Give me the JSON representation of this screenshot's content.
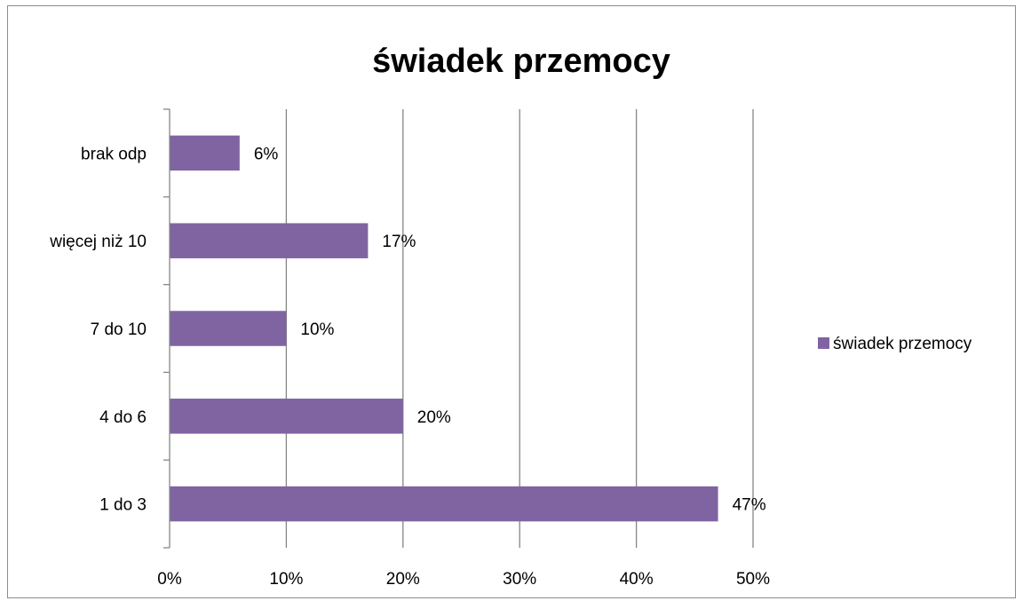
{
  "chart_data": {
    "type": "bar",
    "orientation": "horizontal",
    "title": "świadek przemocy",
    "categories": [
      "1 do 3",
      "4 do 6",
      "7 do 10",
      "więcej niż 10",
      "brak odp"
    ],
    "series": [
      {
        "name": "świadek przemocy",
        "values": [
          47,
          20,
          10,
          17,
          6
        ],
        "data_labels": [
          "47%",
          "20%",
          "10%",
          "17%",
          "6%"
        ],
        "color": "#8064A2"
      }
    ],
    "xlim": [
      0,
      50
    ],
    "xticks": [
      0,
      10,
      20,
      30,
      40,
      50
    ],
    "xtick_labels": [
      "0%",
      "10%",
      "20%",
      "30%",
      "40%",
      "50%"
    ],
    "xlabel": "",
    "ylabel": "",
    "grid": "vertical",
    "legend": "right"
  }
}
